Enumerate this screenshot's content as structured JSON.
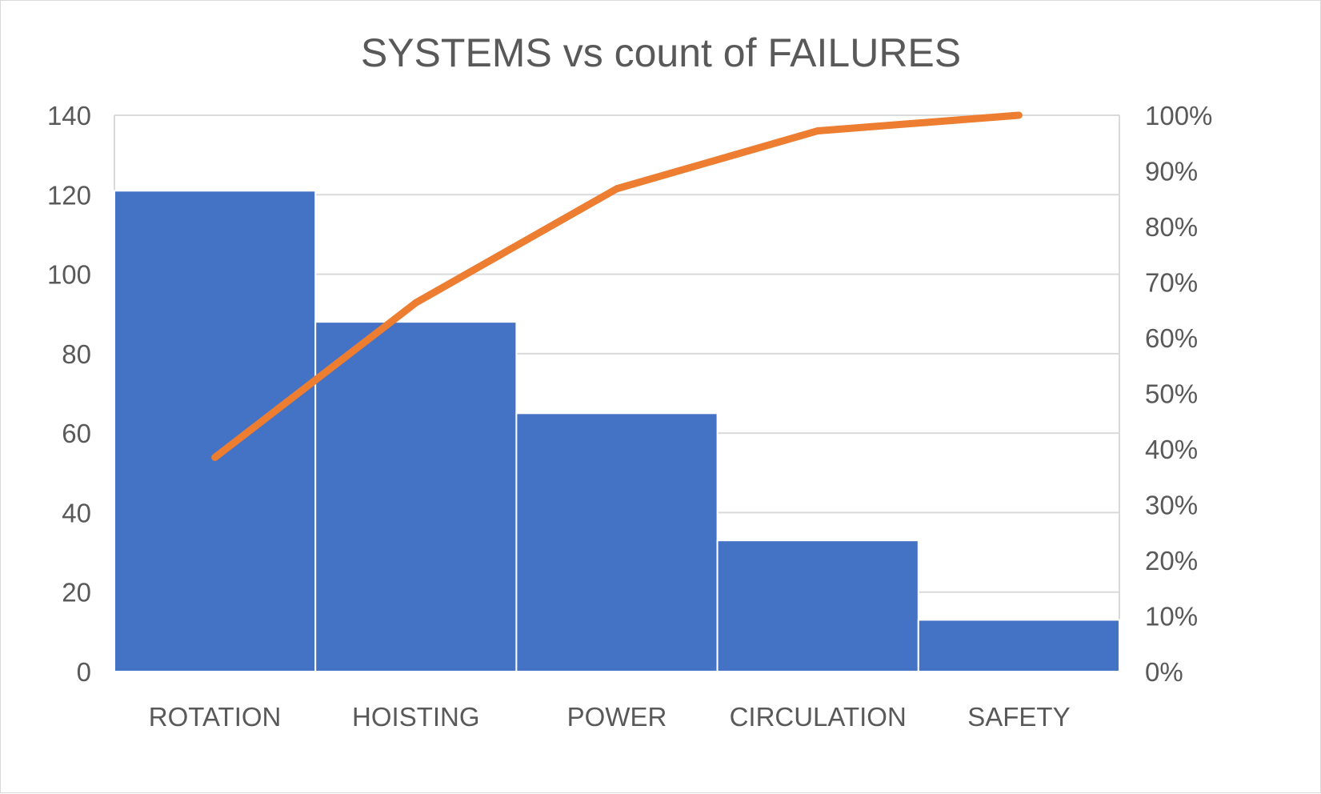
{
  "chart_data": {
    "type": "bar",
    "title": "SYSTEMS vs count of FAILURES",
    "categories": [
      "ROTATION",
      "HOISTING",
      "POWER",
      "CIRCULATION",
      "SAFETY"
    ],
    "series": [
      {
        "type": "bar",
        "values": [
          121,
          88,
          65,
          33,
          13
        ],
        "color": "#4472C4",
        "axis": "left"
      },
      {
        "type": "line",
        "values": [
          38.5,
          66.3,
          86.8,
          97.2,
          100
        ],
        "color": "#ED7D31",
        "axis": "right"
      }
    ],
    "ylim": [
      0,
      140
    ],
    "yticks": [
      "0",
      "20",
      "40",
      "60",
      "80",
      "100",
      "120",
      "140"
    ],
    "y2lim": [
      0,
      100
    ],
    "y2ticks": [
      "0%",
      "10%",
      "20%",
      "30%",
      "40%",
      "50%",
      "60%",
      "70%",
      "80%",
      "90%",
      "100%"
    ],
    "grid": true,
    "gridColor": "#d9d9d9",
    "xlabel": "",
    "ylabel": ""
  }
}
